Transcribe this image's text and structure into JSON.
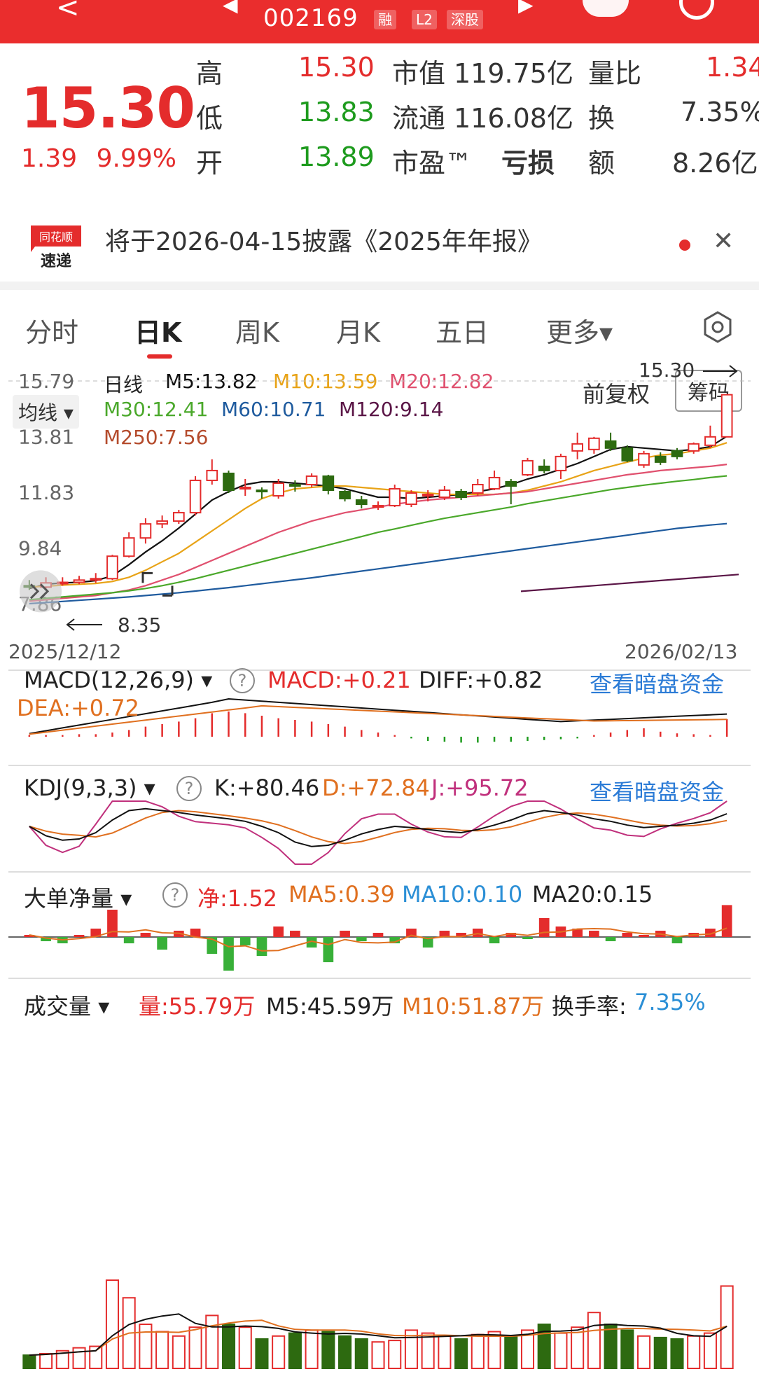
{
  "header": {
    "code": "002169",
    "badges": [
      "融",
      "L2",
      "深股"
    ],
    "back_label": "<",
    "colors": {
      "up": "#e42c2c",
      "down": "#1e9b1e",
      "bar": "#ea2d2d"
    }
  },
  "quote": {
    "price": "15.30",
    "change": "1.39",
    "change_pct": "9.99%",
    "rows": [
      {
        "l1": "高",
        "v1": "15.30",
        "l2": "市值",
        "v2": "119.75亿",
        "l3": "量比",
        "v3": "1.34"
      },
      {
        "l1": "低",
        "v1": "13.83",
        "l2": "流通",
        "v2": "116.08亿",
        "l3": "换",
        "v3": "7.35%"
      },
      {
        "l1": "开",
        "v1": "13.89",
        "l2": "市盈™",
        "v2": "亏损",
        "l3": "额",
        "v3": "8.26亿"
      }
    ]
  },
  "notice": {
    "logo_top": "同花顺",
    "logo_bottom": "速递",
    "text": "将于2026-04-15披露《2025年年报》"
  },
  "tabs": [
    "分时",
    "日K",
    "周K",
    "月K",
    "五日",
    "更多▾"
  ],
  "active_tab": 1,
  "kline": {
    "ma_dropdown": "均线",
    "title": "日线",
    "ma": {
      "m5": "M5:13.82",
      "m10": "M10:13.59",
      "m20": "M20:12.82",
      "m30": "M30:12.41",
      "m60": "M60:10.71",
      "m120": "M120:9.14",
      "m250": "M250:7.56"
    },
    "fq": "前复权",
    "chouma": "筹码",
    "y_ticks": [
      "15.79",
      "13.81",
      "11.83",
      "9.84",
      "7.86"
    ],
    "high_label": "15.30",
    "low_label": "8.35",
    "date_start": "2025/12/12",
    "date_end": "2026/02/13",
    "colors": {
      "m5": "#111111",
      "m10": "#e8a317",
      "m20": "#e0506e",
      "m30": "#4aa82a",
      "m60": "#1f5b9e",
      "m120": "#5a1546",
      "m250": "#b44b2c"
    }
  },
  "macd": {
    "name": "MACD(12,26,9)",
    "macd": "MACD:+0.21",
    "diff": "DIFF:+0.82",
    "dea": "DEA:+0.72",
    "link": "查看暗盘资金"
  },
  "kdj": {
    "name": "KDJ(9,3,3)",
    "k": "K:+80.46",
    "d": "D:+72.84",
    "j": "J:+95.72",
    "link": "查看暗盘资金"
  },
  "ddx": {
    "name": "大单净量",
    "net": "净:1.52",
    "ma5": "MA5:0.39",
    "ma10": "MA10:0.10",
    "ma20": "MA20:0.15"
  },
  "volume": {
    "name": "成交量",
    "vol": "量:55.79万",
    "m5": "M5:45.59万",
    "m10": "M10:51.87万",
    "turnover_label": "换手率:",
    "turnover": "7.35%"
  },
  "chart_data": {
    "type": "candlestick",
    "title": "日线",
    "x_range": [
      "2025/12/12",
      "2026/02/13"
    ],
    "ylim": [
      7.86,
      15.79
    ],
    "candles": [
      {
        "o": 8.5,
        "c": 8.45,
        "h": 8.7,
        "l": 8.35
      },
      {
        "o": 8.45,
        "c": 8.6,
        "h": 8.8,
        "l": 8.4
      },
      {
        "o": 8.6,
        "c": 8.62,
        "h": 8.8,
        "l": 8.5
      },
      {
        "o": 8.62,
        "c": 8.7,
        "h": 8.85,
        "l": 8.55
      },
      {
        "o": 8.7,
        "c": 8.75,
        "h": 8.95,
        "l": 8.6
      },
      {
        "o": 8.75,
        "c": 9.55,
        "h": 9.6,
        "l": 8.7
      },
      {
        "o": 9.55,
        "c": 10.2,
        "h": 10.4,
        "l": 9.5
      },
      {
        "o": 10.2,
        "c": 10.7,
        "h": 10.9,
        "l": 10.0
      },
      {
        "o": 10.7,
        "c": 10.8,
        "h": 11.0,
        "l": 10.55
      },
      {
        "o": 10.8,
        "c": 11.1,
        "h": 11.2,
        "l": 10.7
      },
      {
        "o": 11.1,
        "c": 12.25,
        "h": 12.4,
        "l": 11.0
      },
      {
        "o": 12.25,
        "c": 12.6,
        "h": 13.0,
        "l": 12.1
      },
      {
        "o": 12.5,
        "c": 11.9,
        "h": 12.6,
        "l": 11.8
      },
      {
        "o": 11.95,
        "c": 12.0,
        "h": 12.3,
        "l": 11.7
      },
      {
        "o": 11.9,
        "c": 11.85,
        "h": 12.0,
        "l": 11.6
      },
      {
        "o": 11.7,
        "c": 12.15,
        "h": 12.3,
        "l": 11.6
      },
      {
        "o": 12.1,
        "c": 12.05,
        "h": 12.25,
        "l": 11.85
      },
      {
        "o": 12.1,
        "c": 12.4,
        "h": 12.5,
        "l": 12.0
      },
      {
        "o": 12.4,
        "c": 11.9,
        "h": 12.45,
        "l": 11.75
      },
      {
        "o": 11.85,
        "c": 11.6,
        "h": 11.9,
        "l": 11.5
      },
      {
        "o": 11.55,
        "c": 11.4,
        "h": 11.7,
        "l": 11.25
      },
      {
        "o": 11.3,
        "c": 11.35,
        "h": 11.5,
        "l": 11.2
      },
      {
        "o": 11.35,
        "c": 11.95,
        "h": 12.1,
        "l": 11.3
      },
      {
        "o": 11.4,
        "c": 11.8,
        "h": 11.9,
        "l": 11.3
      },
      {
        "o": 11.7,
        "c": 11.75,
        "h": 11.9,
        "l": 11.5
      },
      {
        "o": 11.65,
        "c": 11.9,
        "h": 12.05,
        "l": 11.55
      },
      {
        "o": 11.85,
        "c": 11.65,
        "h": 11.95,
        "l": 11.55
      },
      {
        "o": 11.8,
        "c": 12.1,
        "h": 12.3,
        "l": 11.7
      },
      {
        "o": 11.95,
        "c": 12.35,
        "h": 12.6,
        "l": 11.9
      },
      {
        "o": 12.2,
        "c": 12.05,
        "h": 12.3,
        "l": 11.4
      },
      {
        "o": 12.45,
        "c": 12.95,
        "h": 13.05,
        "l": 12.4
      },
      {
        "o": 12.75,
        "c": 12.6,
        "h": 13.0,
        "l": 12.5
      },
      {
        "o": 12.6,
        "c": 13.1,
        "h": 13.2,
        "l": 12.3
      },
      {
        "o": 13.3,
        "c": 13.55,
        "h": 13.95,
        "l": 13.0
      },
      {
        "o": 13.35,
        "c": 13.75,
        "h": 13.8,
        "l": 13.2
      },
      {
        "o": 13.65,
        "c": 13.4,
        "h": 13.95,
        "l": 13.3
      },
      {
        "o": 13.4,
        "c": 12.95,
        "h": 13.5,
        "l": 12.9
      },
      {
        "o": 12.8,
        "c": 13.2,
        "h": 13.3,
        "l": 12.7
      },
      {
        "o": 13.1,
        "c": 12.9,
        "h": 13.25,
        "l": 12.8
      },
      {
        "o": 13.3,
        "c": 13.1,
        "h": 13.4,
        "l": 13.0
      },
      {
        "o": 13.3,
        "c": 13.55,
        "h": 13.6,
        "l": 13.2
      },
      {
        "o": 13.5,
        "c": 13.8,
        "h": 14.2,
        "l": 13.4
      },
      {
        "o": 13.8,
        "c": 15.3,
        "h": 15.3,
        "l": 13.83
      }
    ],
    "ma_series": {
      "m5": [
        8.4,
        8.55,
        8.6,
        8.62,
        8.68,
        8.85,
        9.25,
        9.7,
        10.1,
        10.55,
        11.05,
        11.55,
        11.85,
        12.1,
        12.2,
        12.2,
        12.15,
        12.1,
        12.05,
        11.95,
        11.8,
        11.65,
        11.65,
        11.6,
        11.65,
        11.7,
        11.75,
        11.85,
        11.95,
        12.1,
        12.3,
        12.45,
        12.65,
        12.85,
        13.1,
        13.35,
        13.45,
        13.4,
        13.35,
        13.3,
        13.35,
        13.45,
        13.82
      ],
      "m10": [
        8.45,
        8.48,
        8.52,
        8.55,
        8.58,
        8.65,
        8.8,
        9.05,
        9.35,
        9.65,
        10.05,
        10.45,
        10.85,
        11.25,
        11.6,
        11.8,
        11.95,
        12.0,
        12.05,
        12.05,
        12.0,
        11.95,
        11.9,
        11.85,
        11.8,
        11.75,
        11.75,
        11.75,
        11.75,
        11.8,
        11.9,
        12.05,
        12.2,
        12.4,
        12.6,
        12.75,
        12.9,
        13.05,
        13.15,
        13.2,
        13.3,
        13.4,
        13.59
      ],
      "m20": [
        7.95,
        8.0,
        8.05,
        8.1,
        8.15,
        8.25,
        8.35,
        8.5,
        8.7,
        8.9,
        9.15,
        9.4,
        9.65,
        9.9,
        10.15,
        10.4,
        10.6,
        10.8,
        10.95,
        11.1,
        11.2,
        11.3,
        11.4,
        11.48,
        11.55,
        11.6,
        11.65,
        11.7,
        11.75,
        11.8,
        11.85,
        11.95,
        12.05,
        12.15,
        12.25,
        12.35,
        12.45,
        12.52,
        12.6,
        12.65,
        12.7,
        12.75,
        12.82
      ],
      "m30": [
        8.0,
        8.05,
        8.1,
        8.15,
        8.2,
        8.25,
        8.32,
        8.4,
        8.5,
        8.62,
        8.75,
        8.9,
        9.05,
        9.2,
        9.35,
        9.5,
        9.65,
        9.8,
        9.95,
        10.1,
        10.25,
        10.4,
        10.52,
        10.65,
        10.78,
        10.9,
        11.0,
        11.1,
        11.2,
        11.3,
        11.42,
        11.52,
        11.62,
        11.72,
        11.82,
        11.92,
        12.0,
        12.08,
        12.15,
        12.22,
        12.28,
        12.35,
        12.41
      ],
      "m60": [
        7.86,
        7.9,
        7.94,
        7.98,
        8.02,
        8.06,
        8.1,
        8.15,
        8.2,
        8.25,
        8.31,
        8.37,
        8.43,
        8.5,
        8.57,
        8.64,
        8.71,
        8.78,
        8.86,
        8.94,
        9.02,
        9.1,
        9.18,
        9.26,
        9.34,
        9.42,
        9.5,
        9.58,
        9.66,
        9.74,
        9.82,
        9.9,
        9.98,
        10.06,
        10.14,
        10.22,
        10.3,
        10.38,
        10.46,
        10.54,
        10.6,
        10.66,
        10.71
      ]
    },
    "macd_hist": [
      0.02,
      0.02,
      0.02,
      0.03,
      0.03,
      0.05,
      0.08,
      0.12,
      0.15,
      0.18,
      0.22,
      0.28,
      0.3,
      0.28,
      0.25,
      0.22,
      0.2,
      0.18,
      0.15,
      0.12,
      0.08,
      0.05,
      0.02,
      -0.02,
      -0.05,
      -0.06,
      -0.07,
      -0.07,
      -0.06,
      -0.06,
      -0.05,
      -0.04,
      -0.03,
      -0.02,
      0.02,
      0.05,
      0.08,
      0.1,
      0.06,
      0.04,
      0.03,
      0.02,
      0.21
    ],
    "kdj_k": [
      60,
      45,
      38,
      40,
      50,
      70,
      85,
      88,
      85,
      82,
      78,
      75,
      72,
      68,
      60,
      50,
      35,
      28,
      30,
      38,
      48,
      55,
      60,
      58,
      55,
      52,
      50,
      55,
      62,
      70,
      80,
      85,
      82,
      78,
      72,
      68,
      62,
      58,
      60,
      62,
      65,
      70,
      80
    ],
    "volume": [
      9,
      10,
      12,
      14,
      15,
      60,
      48,
      30,
      25,
      22,
      28,
      36,
      30,
      28,
      20,
      22,
      24,
      26,
      25,
      22,
      20,
      18,
      19,
      26,
      24,
      22,
      20,
      23,
      25,
      22,
      26,
      30,
      24,
      28,
      38,
      30,
      26,
      22,
      21,
      20,
      22,
      24,
      56
    ],
    "ddx": [
      0.1,
      -0.2,
      -0.3,
      0.1,
      0.4,
      1.3,
      -0.3,
      0.2,
      -0.6,
      0.3,
      0.4,
      -0.8,
      -1.6,
      -0.4,
      -0.9,
      0.5,
      0.3,
      -0.5,
      -1.2,
      0.3,
      -0.2,
      0.2,
      -0.3,
      0.4,
      -0.5,
      0.3,
      0.2,
      0.4,
      -0.3,
      0.2,
      -0.1,
      0.9,
      0.5,
      0.4,
      0.3,
      -0.2,
      0.2,
      0.1,
      0.3,
      -0.3,
      0.2,
      0.4,
      1.52
    ]
  }
}
